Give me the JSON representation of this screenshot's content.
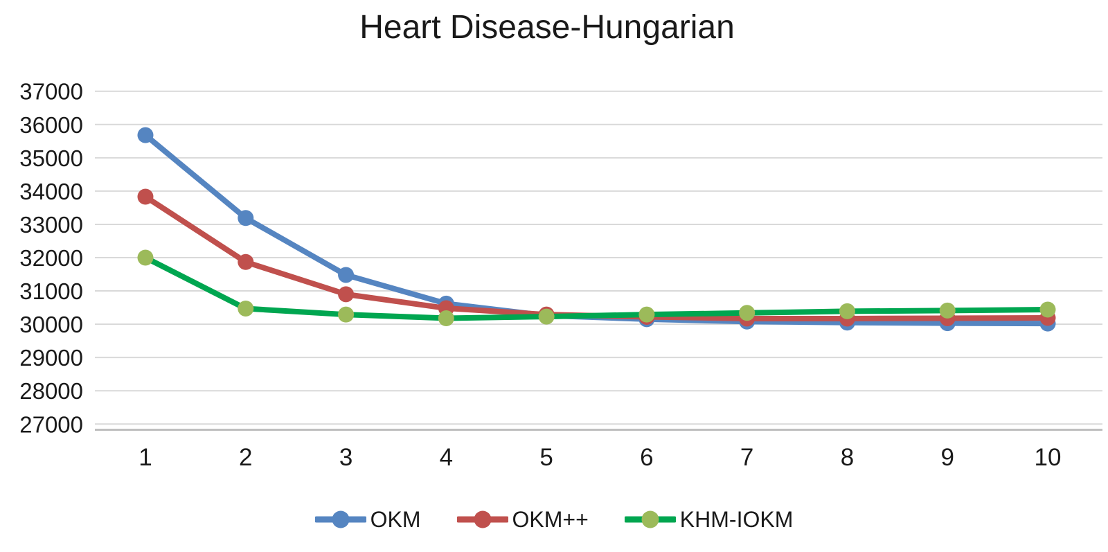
{
  "chart_data": {
    "type": "line",
    "title": "Heart Disease-Hungarian",
    "x": [
      1,
      2,
      3,
      4,
      5,
      6,
      7,
      8,
      9,
      10
    ],
    "xlabel": "",
    "ylabel": "",
    "ylim": [
      27000,
      37000
    ],
    "yticks": [
      27000,
      28000,
      29000,
      30000,
      31000,
      32000,
      33000,
      34000,
      35000,
      36000,
      37000
    ],
    "grid": true,
    "legend_position": "bottom",
    "series": [
      {
        "name": "OKM",
        "color": "#5585c1",
        "marker_color": "#5585c1",
        "values": [
          35680,
          33190,
          31480,
          30620,
          30260,
          30150,
          30080,
          30050,
          30030,
          30020
        ]
      },
      {
        "name": "OKM++",
        "color": "#c0504d",
        "marker_color": "#c0504d",
        "values": [
          33830,
          31870,
          30900,
          30480,
          30290,
          30220,
          30170,
          30170,
          30180,
          30190
        ]
      },
      {
        "name": "KHM-IOKM",
        "color": "#00a650",
        "marker_color": "#9cba5a",
        "values": [
          32000,
          30470,
          30290,
          30180,
          30230,
          30290,
          30340,
          30390,
          30410,
          30440
        ]
      }
    ]
  },
  "colors": {
    "gridline": "#d9d9d9",
    "axis_line": "#bfbfbf",
    "text": "#1a1a1a",
    "background": "#ffffff"
  }
}
